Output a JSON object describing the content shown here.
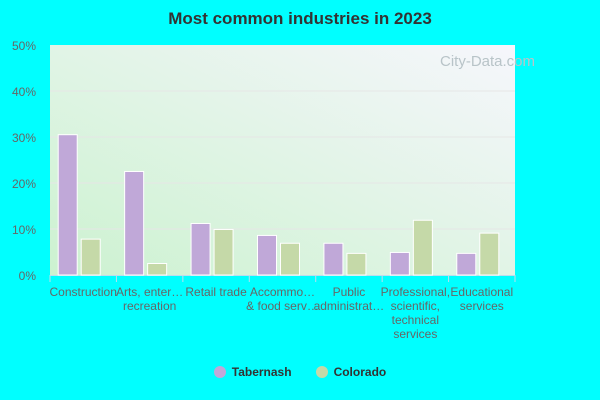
{
  "chart_data": {
    "type": "bar",
    "title": "Most common industries in 2023",
    "categories": [
      [
        "Construction"
      ],
      [
        "Arts, enter…",
        "recreation"
      ],
      [
        "Retail trade"
      ],
      [
        "Accommo…",
        "& food serv…"
      ],
      [
        "Public",
        "administrat…"
      ],
      [
        "Professional,",
        "scientific,",
        "technical",
        "services"
      ],
      [
        "Educational",
        "services"
      ]
    ],
    "series": [
      {
        "name": "Tabernash",
        "color": "#c0a8d8",
        "values": [
          30.5,
          22.5,
          11.2,
          8.6,
          6.9,
          4.9,
          4.7
        ]
      },
      {
        "name": "Colorado",
        "color": "#c5d9a8",
        "values": [
          7.8,
          2.5,
          9.9,
          6.9,
          4.7,
          11.9,
          9.1
        ]
      }
    ],
    "ylim": [
      0,
      50
    ],
    "yticks": [
      "0%",
      "10%",
      "20%",
      "30%",
      "40%",
      "50%"
    ],
    "grid": true,
    "legend": "bottom",
    "watermark": "City-Data.com"
  }
}
